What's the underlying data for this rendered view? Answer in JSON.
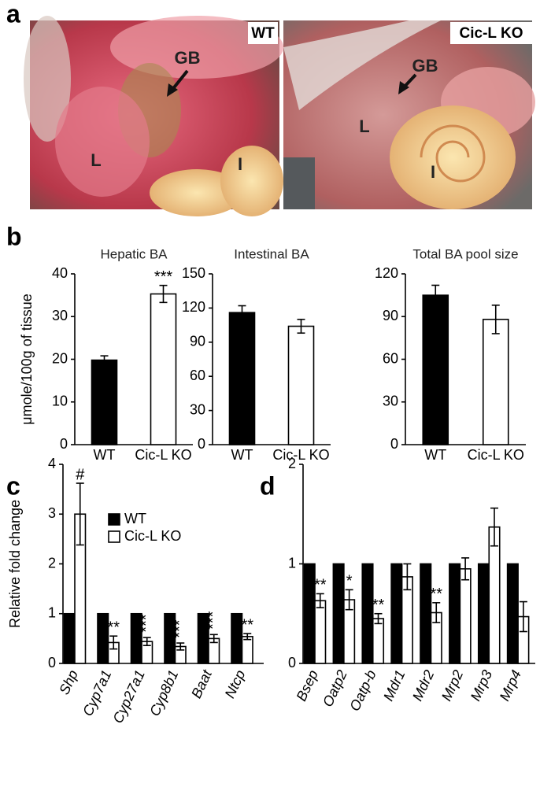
{
  "panel_labels": [
    "a",
    "b",
    "c",
    "d"
  ],
  "photos": {
    "left": {
      "tag": "WT",
      "labels": [
        "GB",
        "L",
        "I"
      ]
    },
    "right": {
      "tag": "Cic-L KO",
      "labels": [
        "GB",
        "L",
        "I"
      ]
    }
  },
  "chart_data": [
    {
      "type": "bar",
      "title": "Hepatic BA",
      "y_label": "μmole/100g of tissue",
      "categories": [
        "WT",
        "Cic-L KO"
      ],
      "values": [
        19.8,
        35.3
      ],
      "errors": [
        1.0,
        2.0
      ],
      "significance": [
        null,
        "***"
      ],
      "colors": [
        "#000000",
        "#ffffff"
      ],
      "ylim": [
        0,
        40
      ],
      "yticks": [
        0,
        10,
        20,
        30,
        40
      ]
    },
    {
      "type": "bar",
      "title": "Intestinal BA",
      "categories": [
        "WT",
        "Cic-L KO"
      ],
      "values": [
        116,
        104
      ],
      "errors": [
        6,
        6
      ],
      "colors": [
        "#000000",
        "#ffffff"
      ],
      "ylim": [
        0,
        150
      ],
      "yticks": [
        0,
        30,
        60,
        90,
        120,
        150
      ]
    },
    {
      "type": "bar",
      "title": "Total BA pool size",
      "categories": [
        "WT",
        "Cic-L KO"
      ],
      "values": [
        105,
        88
      ],
      "errors": [
        7,
        10
      ],
      "colors": [
        "#000000",
        "#ffffff"
      ],
      "ylim": [
        0,
        120
      ],
      "yticks": [
        0,
        30,
        60,
        90,
        120
      ]
    },
    {
      "type": "grouped-bar",
      "y_label": "Relative fold change",
      "categories": [
        "Shp",
        "Cyp7a1",
        "Cyp27a1",
        "Cyp8b1",
        "Baat",
        "Ntcp"
      ],
      "series": [
        {
          "name": "WT",
          "color": "#000000",
          "values": [
            1,
            1,
            1,
            1,
            1,
            1
          ]
        },
        {
          "name": "Cic-L KO",
          "color": "#ffffff",
          "values": [
            3.0,
            0.42,
            0.44,
            0.34,
            0.5,
            0.54
          ],
          "errors": [
            0.62,
            0.13,
            0.08,
            0.07,
            0.08,
            0.06
          ],
          "significance": [
            "#",
            "**",
            "***",
            "***",
            "***",
            "**"
          ]
        }
      ],
      "legend": "upper-left",
      "ylim": [
        0,
        4
      ],
      "yticks": [
        0,
        1,
        2,
        3,
        4
      ]
    },
    {
      "type": "grouped-bar",
      "categories": [
        "Bsep",
        "Oatp2",
        "Oatp-b",
        "Mdr1",
        "Mdr2",
        "Mrp2",
        "Mrp3",
        "Mrp4"
      ],
      "series": [
        {
          "name": "WT",
          "color": "#000000",
          "values": [
            1,
            1,
            1,
            1,
            1,
            1,
            1,
            1
          ]
        },
        {
          "name": "Cic-L KO",
          "color": "#ffffff",
          "values": [
            0.63,
            0.64,
            0.45,
            0.87,
            0.51,
            0.95,
            1.37,
            0.47
          ],
          "errors": [
            0.07,
            0.1,
            0.05,
            0.13,
            0.1,
            0.11,
            0.19,
            0.15
          ],
          "significance": [
            "**",
            "*",
            "**",
            null,
            "**",
            null,
            null,
            null
          ]
        }
      ],
      "ylim": [
        0,
        2
      ],
      "yticks": [
        0,
        1,
        2
      ]
    }
  ]
}
